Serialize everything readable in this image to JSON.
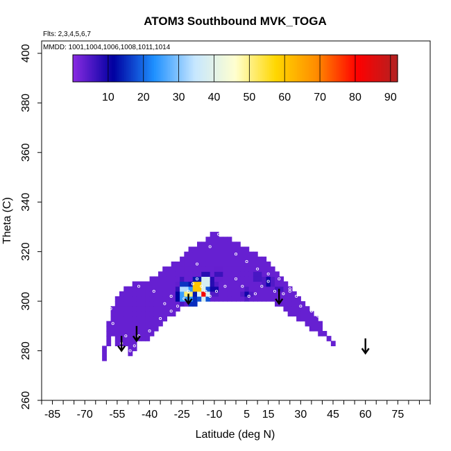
{
  "chart_data": {
    "type": "heatmap",
    "title": "ATOM3 Southbound MVK_TOGA",
    "subtitle_flights": "Flts: 2,3,4,5,6,7",
    "subtitle_dates": "MMDD: 1001,1004,1006,1008,1011,1014",
    "xlabel": "Latitude (deg N)",
    "ylabel": "Theta (C)",
    "xlim": [
      -90,
      90
    ],
    "ylim": [
      260,
      405
    ],
    "x_tick_labels": [
      -85,
      -70,
      -55,
      -40,
      -25,
      -10,
      5,
      15,
      30,
      45,
      60,
      75
    ],
    "x_minor_ticks": [
      -90,
      -85,
      -80,
      -75,
      -70,
      -65,
      -60,
      -55,
      -50,
      -45,
      -40,
      -35,
      -30,
      -25,
      -20,
      -15,
      -10,
      -5,
      0,
      5,
      10,
      15,
      20,
      25,
      30,
      35,
      40,
      45,
      50,
      55,
      60,
      65,
      70,
      75,
      80,
      85,
      90
    ],
    "y_ticks": [
      260,
      280,
      300,
      320,
      340,
      360,
      380,
      400
    ],
    "colorbar": {
      "min": 0,
      "max": 92,
      "ticks": [
        10,
        20,
        30,
        40,
        50,
        60,
        70,
        80,
        90
      ],
      "colors": [
        "#8a2be2",
        "#0000a0",
        "#1e90ff",
        "#c6e6ff",
        "#ffffd0",
        "#ffd700",
        "#ff8c00",
        "#ff0000",
        "#b22222"
      ],
      "palette_note": "purple to navy to blue to white to yellow to orange to red to dark red"
    },
    "field_outline": [
      [
        -62,
        274
      ],
      [
        -60,
        276
      ],
      [
        -59,
        281
      ],
      [
        -57,
        287
      ],
      [
        -55,
        283
      ],
      [
        -53,
        281
      ],
      [
        -51,
        282
      ],
      [
        -49,
        277
      ],
      [
        -47,
        280
      ],
      [
        -45,
        283
      ],
      [
        -43,
        284
      ],
      [
        -40,
        285
      ],
      [
        -36,
        290
      ],
      [
        -32,
        293
      ],
      [
        -28,
        295
      ],
      [
        -24,
        299
      ],
      [
        -20,
        298
      ],
      [
        -17,
        300
      ],
      [
        -13,
        301
      ],
      [
        -8,
        301
      ],
      [
        0,
        301
      ],
      [
        8,
        301
      ],
      [
        15,
        300
      ],
      [
        20,
        298
      ],
      [
        25,
        295
      ],
      [
        30,
        292
      ],
      [
        35,
        289
      ],
      [
        40,
        286
      ],
      [
        44,
        283
      ],
      [
        47,
        282
      ],
      [
        45,
        285
      ],
      [
        40,
        290
      ],
      [
        35,
        296
      ],
      [
        30,
        302
      ],
      [
        25,
        307
      ],
      [
        20,
        312
      ],
      [
        15,
        316
      ],
      [
        10,
        319
      ],
      [
        5,
        322
      ],
      [
        -2,
        325
      ],
      [
        -7,
        327
      ],
      [
        -11,
        329
      ],
      [
        -13,
        326
      ],
      [
        -18,
        323
      ],
      [
        -23,
        320
      ],
      [
        -28,
        316
      ],
      [
        -33,
        313
      ],
      [
        -38,
        310
      ],
      [
        -43,
        308
      ],
      [
        -48,
        307
      ],
      [
        -52,
        305
      ],
      [
        -55,
        301
      ],
      [
        -57,
        297
      ],
      [
        -59,
        292
      ],
      [
        -60,
        287
      ],
      [
        -61,
        282
      ],
      [
        -62,
        278
      ]
    ],
    "background_value": 3,
    "hotspots": [
      {
        "lat": -18,
        "theta": 306,
        "value": 88
      },
      {
        "lat": -15,
        "theta": 303,
        "value": 82
      },
      {
        "lat": -22,
        "theta": 303,
        "value": 62
      },
      {
        "lat": -24,
        "theta": 305,
        "value": 40
      },
      {
        "lat": -25,
        "theta": 302,
        "value": 30
      },
      {
        "lat": -20,
        "theta": 300,
        "value": 22
      },
      {
        "lat": -14,
        "theta": 308,
        "value": 55
      },
      {
        "lat": -10,
        "theta": 305,
        "value": 12
      },
      {
        "lat": 5,
        "theta": 303,
        "value": 10
      },
      {
        "lat": 15,
        "theta": 308,
        "value": 12
      },
      {
        "lat": 10,
        "theta": 310,
        "value": 8
      },
      {
        "lat": -8,
        "theta": 311,
        "value": 8
      },
      {
        "lat": -25,
        "theta": 309,
        "value": 6
      },
      {
        "lat": 20,
        "theta": 305,
        "value": 7
      }
    ],
    "arrows": [
      {
        "lat": -53,
        "theta_top": 286,
        "theta_bottom": 280
      },
      {
        "lat": -46,
        "theta_top": 290,
        "theta_bottom": 284
      },
      {
        "lat": -22,
        "theta_top": 303,
        "theta_bottom": 299
      },
      {
        "lat": 20,
        "theta_top": 305,
        "theta_bottom": 299
      },
      {
        "lat": 60,
        "theta_top": 285,
        "theta_bottom": 279
      }
    ],
    "observations": [
      [
        -55,
        281
      ],
      [
        -53,
        283
      ],
      [
        -51,
        286
      ],
      [
        -49,
        280
      ],
      [
        -47,
        282
      ],
      [
        -45,
        286
      ],
      [
        -40,
        288
      ],
      [
        -35,
        293
      ],
      [
        -30,
        296
      ],
      [
        -27,
        298
      ],
      [
        -24,
        301
      ],
      [
        -22,
        304
      ],
      [
        -20,
        307
      ],
      [
        -18,
        309
      ],
      [
        -16,
        306
      ],
      [
        -14,
        304
      ],
      [
        -12,
        302
      ],
      [
        -9,
        304
      ],
      [
        -5,
        306
      ],
      [
        0,
        309
      ],
      [
        3,
        306
      ],
      [
        6,
        302
      ],
      [
        9,
        303
      ],
      [
        12,
        306
      ],
      [
        15,
        308
      ],
      [
        18,
        304
      ],
      [
        22,
        303
      ],
      [
        25,
        305
      ],
      [
        28,
        302
      ],
      [
        33,
        299
      ],
      [
        38,
        294
      ],
      [
        43,
        290
      ],
      [
        46,
        285
      ],
      [
        -45,
        306
      ],
      [
        -38,
        304
      ],
      [
        -33,
        299
      ],
      [
        -30,
        302
      ],
      [
        -18,
        315
      ],
      [
        -12,
        322
      ],
      [
        -8,
        327
      ],
      [
        0,
        319
      ],
      [
        5,
        316
      ],
      [
        10,
        313
      ],
      [
        15,
        311
      ],
      [
        20,
        309
      ],
      [
        25,
        304
      ],
      [
        30,
        298
      ],
      [
        35,
        296
      ],
      [
        -57,
        291
      ],
      [
        -58,
        297
      ]
    ]
  }
}
